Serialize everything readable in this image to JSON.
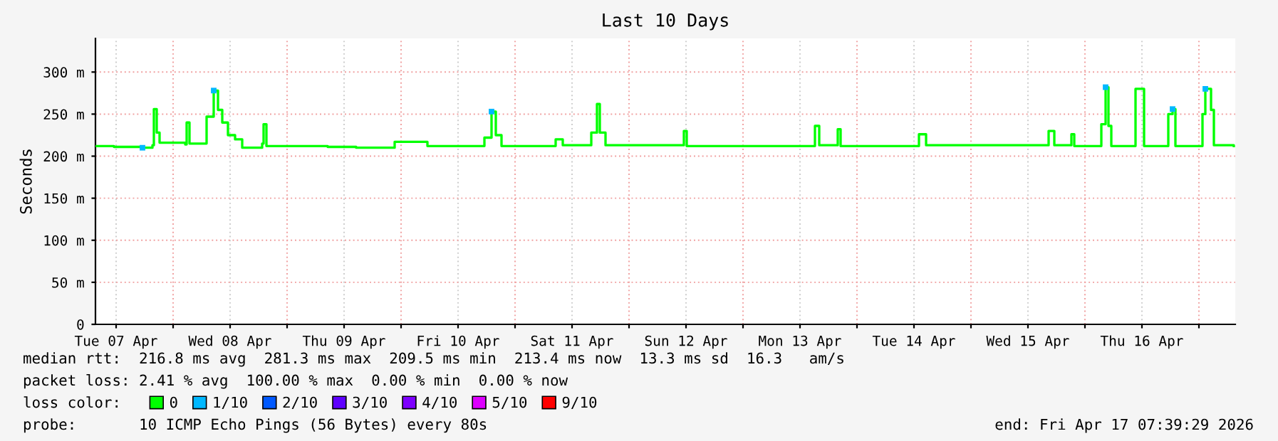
{
  "chart_data": {
    "type": "step",
    "title": "Last 10 Days",
    "ylabel": "Seconds",
    "xlim": [
      "2026-04-07T07:39",
      "2026-04-17T07:39"
    ],
    "xticks": [
      {
        "value": "2026-04-07T12:00",
        "label": "Tue 07 Apr"
      },
      {
        "value": "2026-04-08T00:00",
        "label": null
      },
      {
        "value": "2026-04-08T12:00",
        "label": "Wed 08 Apr"
      },
      {
        "value": "2026-04-09T00:00",
        "label": null
      },
      {
        "value": "2026-04-09T12:00",
        "label": "Thu 09 Apr"
      },
      {
        "value": "2026-04-10T00:00",
        "label": null
      },
      {
        "value": "2026-04-10T12:00",
        "label": "Fri 10 Apr"
      },
      {
        "value": "2026-04-11T00:00",
        "label": null
      },
      {
        "value": "2026-04-11T12:00",
        "label": "Sat 11 Apr"
      },
      {
        "value": "2026-04-12T00:00",
        "label": null
      },
      {
        "value": "2026-04-12T12:00",
        "label": "Sun 12 Apr"
      },
      {
        "value": "2026-04-13T00:00",
        "label": null
      },
      {
        "value": "2026-04-13T12:00",
        "label": "Mon 13 Apr"
      },
      {
        "value": "2026-04-14T00:00",
        "label": null
      },
      {
        "value": "2026-04-14T12:00",
        "label": "Tue 14 Apr"
      },
      {
        "value": "2026-04-15T00:00",
        "label": null
      },
      {
        "value": "2026-04-15T12:00",
        "label": "Wed 15 Apr"
      },
      {
        "value": "2026-04-16T00:00",
        "label": null
      },
      {
        "value": "2026-04-16T12:00",
        "label": "Thu 16 Apr"
      },
      {
        "value": "2026-04-17T00:00",
        "label": null
      }
    ],
    "ylim": [
      0,
      340
    ],
    "yticks": [
      0,
      {
        "value": 50,
        "label": "50 m"
      },
      {
        "value": 100,
        "label": "100 m"
      },
      {
        "value": 150,
        "label": "150 m"
      },
      {
        "value": 200,
        "label": "200 m"
      },
      {
        "value": 250,
        "label": "250 m"
      },
      {
        "value": 300,
        "label": "300 m"
      }
    ],
    "grid": true,
    "legend": "bottom left",
    "series": [
      {
        "name": "0",
        "color": "#00ff00",
        "x": [
          "2026-04-07T07:39",
          "2026-04-07T11:33",
          "2026-04-07T17:33",
          "2026-04-07T19:39",
          "2026-04-07T19:57",
          "2026-04-07T20:33",
          "2026-04-07T21:09",
          "2026-04-08T02:33",
          "2026-04-08T02:51",
          "2026-04-08T03:27",
          "2026-04-08T07:03",
          "2026-04-08T08:33",
          "2026-04-08T09:27",
          "2026-04-08T10:21",
          "2026-04-08T11:33",
          "2026-04-08T13:03",
          "2026-04-08T14:33",
          "2026-04-08T18:45",
          "2026-04-08T19:03",
          "2026-04-08T19:39",
          "2026-04-09T08:33",
          "2026-04-09T14:33",
          "2026-04-09T22:39",
          "2026-04-10T05:33",
          "2026-04-10T17:33",
          "2026-04-10T19:03",
          "2026-04-10T19:57",
          "2026-04-10T21:09",
          "2026-04-11T08:33",
          "2026-04-11T10:03",
          "2026-04-11T16:03",
          "2026-04-11T17:15",
          "2026-04-11T17:51",
          "2026-04-11T19:03",
          "2026-04-12T11:33",
          "2026-04-12T12:09",
          "2026-04-13T15:09",
          "2026-04-13T16:03",
          "2026-04-13T19:57",
          "2026-04-13T20:33",
          "2026-04-14T13:03",
          "2026-04-14T14:33",
          "2026-04-15T16:21",
          "2026-04-15T17:33",
          "2026-04-15T21:09",
          "2026-04-15T21:45",
          "2026-04-16T03:27",
          "2026-04-16T04:21",
          "2026-04-16T04:57",
          "2026-04-16T05:33",
          "2026-04-16T10:39",
          "2026-04-16T12:27",
          "2026-04-16T17:33",
          "2026-04-16T18:27",
          "2026-04-16T19:03",
          "2026-04-17T00:45",
          "2026-04-17T01:21",
          "2026-04-17T02:33",
          "2026-04-17T03:09",
          "2026-04-17T07:21"
        ],
        "values": [
          212,
          211,
          210,
          213,
          256,
          228,
          216,
          214,
          240,
          215,
          247,
          278,
          255,
          240,
          225,
          220,
          210,
          215,
          238,
          212,
          211,
          210,
          217,
          212,
          222,
          253,
          225,
          212,
          220,
          213,
          228,
          262,
          228,
          213,
          230,
          212,
          236,
          213,
          232,
          212,
          226,
          213,
          230,
          213,
          226,
          212,
          238,
          282,
          236,
          212,
          280,
          212,
          250,
          256,
          212,
          250,
          280,
          255,
          213,
          212
        ]
      },
      {
        "name": "1/10",
        "color": "#00b8ff",
        "type": "scatter",
        "marker": "square",
        "x": [
          "2026-04-07T17:33",
          "2026-04-08T08:33",
          "2026-04-10T19:03",
          "2026-04-16T04:21",
          "2026-04-16T18:27",
          "2026-04-17T01:21"
        ],
        "values": [
          210,
          278,
          253,
          282,
          256,
          280
        ]
      },
      {
        "name": "2/10",
        "color": "#0059ff"
      },
      {
        "name": "3/10",
        "color": "#5e00ff"
      },
      {
        "name": "4/10",
        "color": "#7e00ff"
      },
      {
        "name": "5/10",
        "color": "#dd00ff"
      },
      {
        "name": "9/10",
        "color": "#ff0000"
      }
    ],
    "annotations": [
      "median rtt:  216.8 ms avg  281.3 ms max  209.5 ms min  213.4 ms now  13.3 ms sd  16.3   am/s",
      "packet loss: 2.41 % avg  100.00 % max  0.00 % min  0.00 % now",
      "loss color:",
      "probe:       10 ICMP Echo Pings (56 Bytes) every 80s",
      "end: Fri Apr 17 07:39:29 2026"
    ]
  }
}
